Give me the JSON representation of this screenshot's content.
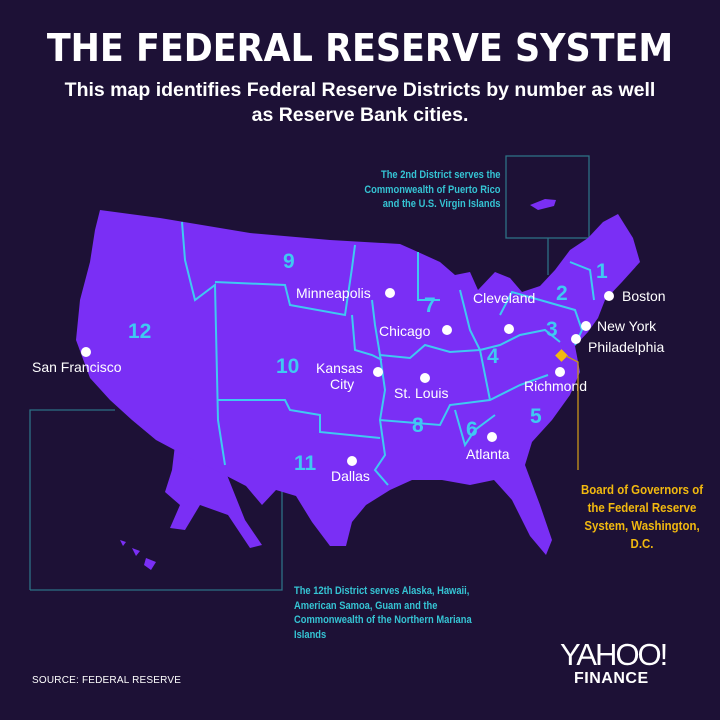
{
  "title": "THE FEDERAL RESERVE SYSTEM",
  "subtitle": "This map identifies Federal Reserve Districts by number as well as Reserve Bank cities.",
  "colors": {
    "background": "#1d1136",
    "map_fill": "#7a2ff5",
    "district_border": "#3fc9f2",
    "notes": "#35c4d4",
    "board": "#f2b90f"
  },
  "notes": {
    "district2": "The 2nd District serves the Commonwealth of Puerto Rico and the U.S. Virgin Islands",
    "district12": "The 12th District serves Alaska, Hawaii, American Samoa, Guam and the Commonwealth of the Northern Mariana Islands"
  },
  "board": "Board of Governors of the Federal Reserve System, Washington, D.C.",
  "districts": [
    "1",
    "2",
    "3",
    "4",
    "5",
    "6",
    "7",
    "8",
    "9",
    "10",
    "11",
    "12"
  ],
  "cities": {
    "boston": "Boston",
    "new_york": "New York",
    "philadelphia": "Philadelphia",
    "cleveland": "Cleveland",
    "richmond": "Richmond",
    "atlanta": "Atlanta",
    "chicago": "Chicago",
    "st_louis": "St. Louis",
    "minneapolis": "Minneapolis",
    "kansas_city_1": "Kansas",
    "kansas_city_2": "City",
    "dallas": "Dallas",
    "san_francisco": "San Francisco"
  },
  "source": "SOURCE:  FEDERAL RESERVE",
  "logo": {
    "yahoo": "YAHOO!",
    "finance": "FINANCE"
  }
}
